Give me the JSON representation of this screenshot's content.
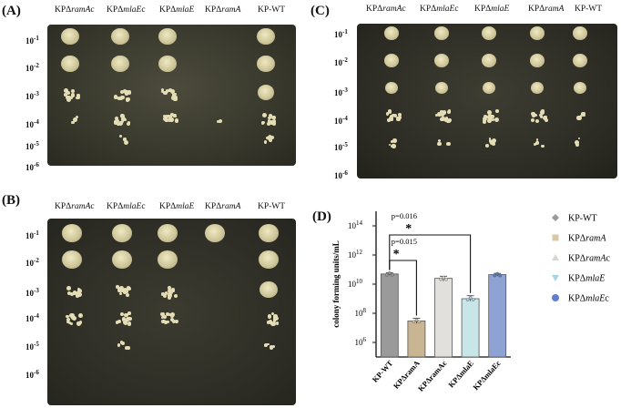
{
  "panels": {
    "A": {
      "label": "(A)",
      "strains": [
        "KPΔramAc",
        "KPΔmlaEc",
        "KPΔmlaE",
        "KPΔramA",
        "KP-WT"
      ]
    },
    "B": {
      "label": "(B)",
      "strains": [
        "KPΔramAc",
        "KPΔmlaEc",
        "KPΔmlaE",
        "KPΔramA",
        "KP-WT"
      ]
    },
    "C": {
      "label": "(C)",
      "strains": [
        "KPΔramAc",
        "KPΔmlaEc",
        "KPΔmlaE",
        "KPΔramA",
        "KP-WT"
      ]
    },
    "D": {
      "label": "(D)"
    }
  },
  "dilutions": [
    "10-1",
    "10-2",
    "10-3",
    "10-4",
    "10-5",
    "10-6"
  ],
  "chart_data": {
    "type": "bar",
    "ylabel": "colony forming units/mL",
    "yscale": "log",
    "ylim": [
      100000,
      1000000000000000.0
    ],
    "yticks": [
      "10^6",
      "10^8",
      "10^10",
      "10^12",
      "10^14"
    ],
    "categories": [
      "KP-WT",
      "KPΔramA",
      "KPΔramAc",
      "KPΔmlaE",
      "KPΔmlaEc"
    ],
    "values": [
      50000000000.0,
      30000000.0,
      25000000000.0,
      1000000000.0,
      45000000000.0
    ],
    "errors_low": [
      40000000000.0,
      20000000.0,
      16000000000.0,
      700000000.0,
      35000000000.0
    ],
    "errors_high": [
      60000000000.0,
      45000000.0,
      35000000000.0,
      1600000000.0,
      55000000000.0
    ],
    "bar_colors": [
      "#9a9a9a",
      "#c9b592",
      "#e2e0dc",
      "#c8e6e8",
      "#8ea3d3"
    ],
    "legend_colors": [
      "#9a9a9a",
      "#d7c8a6",
      "#d9d6d2",
      "#a9d2e6",
      "#5f7ed0"
    ],
    "legend_markers": [
      "diamond",
      "square",
      "triangle",
      "triangle-down",
      "circle"
    ],
    "annotations": [
      {
        "text": "p=0.015",
        "from": "KP-WT",
        "to": "KPΔramA",
        "star": "*"
      },
      {
        "text": "p=0.016",
        "from": "KP-WT",
        "to": "KPΔmlaE",
        "star": "*"
      }
    ],
    "legend": [
      "KP-WT",
      "KPΔramA",
      "KPΔramAc",
      "KPΔmlaE",
      "KPΔmlaEc"
    ],
    "legend_position": "right"
  }
}
